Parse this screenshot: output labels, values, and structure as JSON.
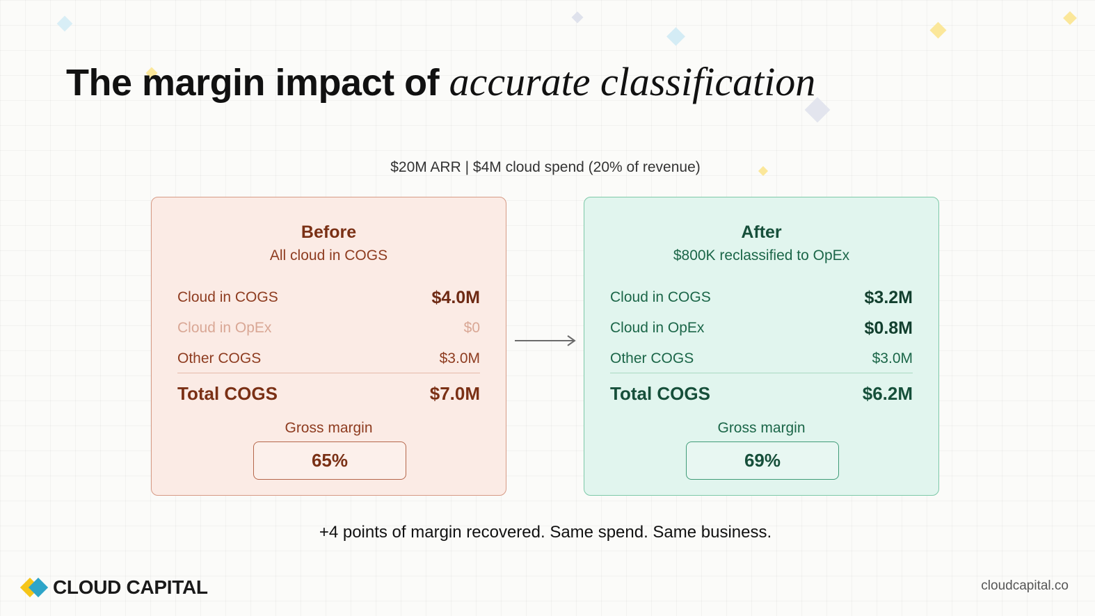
{
  "slide": {
    "title_plain": "The margin impact of ",
    "title_italic": "accurate classification",
    "subtitle": "$20M ARR | $4M cloud spend (20% of revenue)",
    "tagline": "+4 points of margin recovered. Same spend. Same business."
  },
  "before": {
    "title": "Before",
    "subtitle": "All cloud in COGS",
    "rows": [
      {
        "label": "Cloud in COGS",
        "value": "$4.0M"
      },
      {
        "label": "Cloud in OpEx",
        "value": "$0"
      },
      {
        "label": "Other COGS",
        "value": "$3.0M"
      }
    ],
    "total_label": "Total COGS",
    "total_value": "$7.0M",
    "gross_margin_label": "Gross margin",
    "gross_margin_value": "65%"
  },
  "after": {
    "title": "After",
    "subtitle": "$800K reclassified to OpEx",
    "rows": [
      {
        "label": "Cloud in COGS",
        "value": "$3.2M"
      },
      {
        "label": "Cloud in OpEx",
        "value": "$0.8M"
      },
      {
        "label": "Other COGS",
        "value": "$3.0M"
      }
    ],
    "total_label": "Total COGS",
    "total_value": "$6.2M",
    "gross_margin_label": "Gross margin",
    "gross_margin_value": "69%"
  },
  "footer": {
    "brand": "CLOUD CAPITAL",
    "url": "cloudcapital.co"
  },
  "icons": {
    "transition": "right-arrow-icon",
    "logo": "cloud-capital-logo-icon"
  },
  "colors": {
    "before_bg": "#fbebe5",
    "before_accent": "#8e3c20",
    "after_bg": "#e1f5ee",
    "after_accent": "#1b6648"
  }
}
